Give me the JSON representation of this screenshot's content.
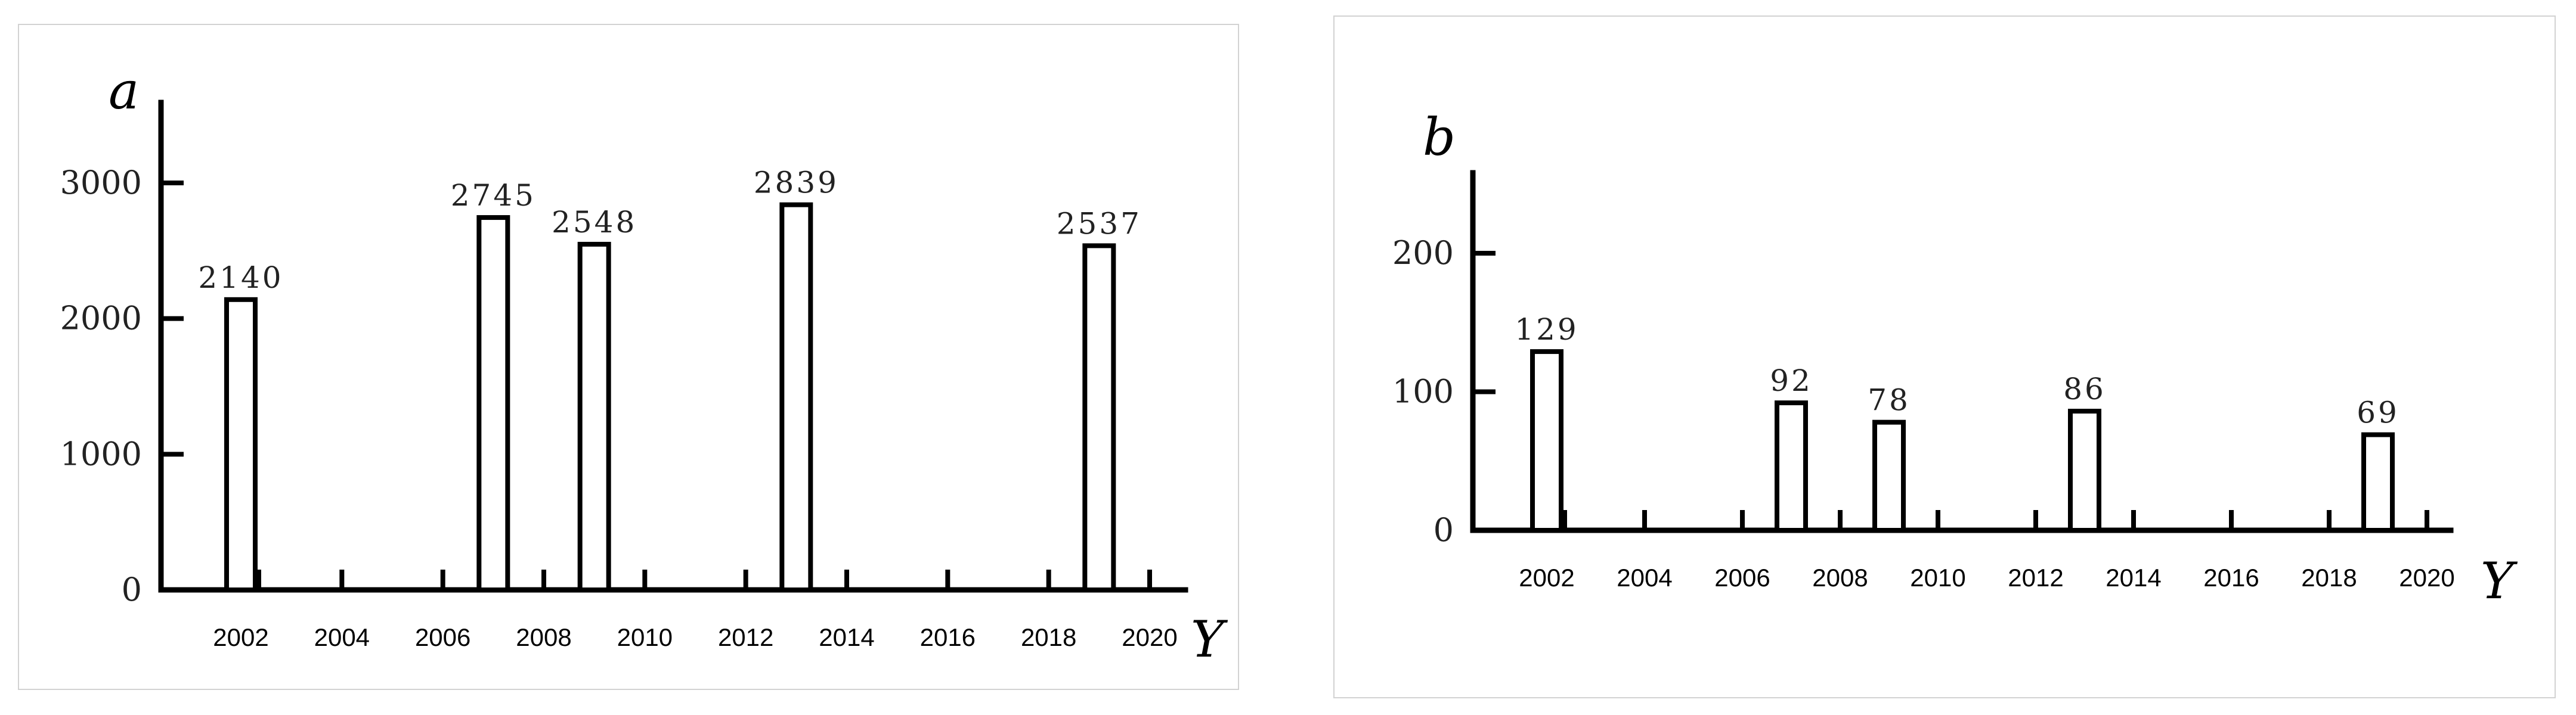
{
  "chart_data": [
    {
      "type": "bar",
      "panel_label": "a",
      "x_axis_name": "Y",
      "x_ticks": [
        "2002",
        "2004",
        "2006",
        "2008",
        "2010",
        "2012",
        "2014",
        "2016",
        "2018",
        "2020"
      ],
      "y_ticks": [
        "0",
        "1000",
        "2000",
        "3000"
      ],
      "ylim": [
        0,
        3000
      ],
      "xlim": [
        2001,
        2021
      ],
      "points": [
        {
          "x": 2002,
          "y": 2140,
          "label": "2140"
        },
        {
          "x": 2007,
          "y": 2745,
          "label": "2745"
        },
        {
          "x": 2009,
          "y": 2548,
          "label": "2548"
        },
        {
          "x": 2013,
          "y": 2839,
          "label": "2839"
        },
        {
          "x": 2019,
          "y": 2537,
          "label": "2537"
        }
      ]
    },
    {
      "type": "bar",
      "panel_label": "b",
      "x_axis_name": "Y",
      "x_ticks": [
        "2002",
        "2004",
        "2006",
        "2008",
        "2010",
        "2012",
        "2014",
        "2016",
        "2018",
        "2020"
      ],
      "y_ticks": [
        "0",
        "100",
        "200"
      ],
      "ylim": [
        0,
        200
      ],
      "xlim": [
        2001,
        2021
      ],
      "points": [
        {
          "x": 2002,
          "y": 129,
          "label": "129"
        },
        {
          "x": 2007,
          "y": 92,
          "label": "92"
        },
        {
          "x": 2009,
          "y": 78,
          "label": "78"
        },
        {
          "x": 2013,
          "y": 86,
          "label": "86"
        },
        {
          "x": 2019,
          "y": 69,
          "label": "69"
        }
      ]
    }
  ]
}
